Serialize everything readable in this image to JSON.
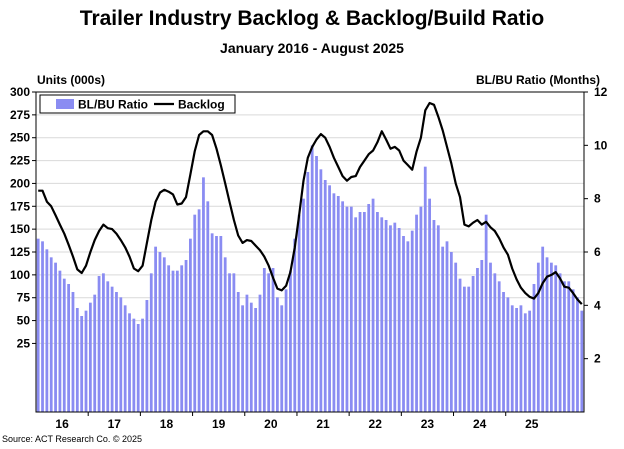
{
  "chart_data": {
    "type": "bar+line",
    "title": "Trailer Industry Backlog & Backlog/Build Ratio",
    "subtitle": "January 2016 - August 2025",
    "ylabel_left": "Units (000s)",
    "ylabel_right": "BL/BU Ratio (Months)",
    "source": "Source: ACT Research Co. © 2025",
    "left_axis": {
      "ticks": [
        25,
        50,
        75,
        100,
        125,
        150,
        175,
        200,
        225,
        250,
        275,
        300
      ],
      "range": [
        -50,
        300
      ]
    },
    "right_axis": {
      "ticks": [
        2,
        4,
        6,
        8,
        10,
        12
      ],
      "range": [
        0,
        12
      ]
    },
    "x_labels": [
      "16",
      "17",
      "18",
      "19",
      "20",
      "21",
      "22",
      "23",
      "24",
      "25"
    ],
    "grid": true,
    "legend": {
      "position": "top-left",
      "entries": [
        "BL/BU Ratio",
        "Backlog"
      ]
    },
    "colors": {
      "bar": "#8a8cf2",
      "line": "#000000"
    },
    "series": [
      {
        "name": "Backlog",
        "type": "line",
        "axis": "left",
        "values": [
          192,
          192,
          180,
          175,
          165,
          155,
          145,
          133,
          120,
          106,
          102,
          110,
          125,
          138,
          148,
          155,
          151,
          150,
          145,
          138,
          130,
          120,
          107,
          104,
          110,
          135,
          160,
          180,
          190,
          193,
          191,
          188,
          177,
          178,
          185,
          210,
          235,
          253,
          257,
          257,
          253,
          238,
          220,
          200,
          180,
          160,
          143,
          135,
          138,
          137,
          132,
          127,
          120,
          110,
          97,
          85,
          83,
          88,
          103,
          130,
          165,
          203,
          228,
          240,
          248,
          254,
          250,
          240,
          228,
          218,
          208,
          203,
          207,
          208,
          218,
          225,
          232,
          236,
          245,
          257,
          248,
          238,
          240,
          236,
          225,
          220,
          215,
          235,
          250,
          280,
          288,
          286,
          273,
          258,
          240,
          222,
          200,
          185,
          155,
          153,
          157,
          160,
          155,
          158,
          152,
          148,
          140,
          130,
          122,
          107,
          95,
          86,
          80,
          76,
          74,
          80,
          91,
          98,
          100,
          103,
          96,
          87,
          86,
          80,
          73,
          68
        ]
      },
      {
        "name": "BL/BU Ratio",
        "type": "bar",
        "axis": "right",
        "values": [
          6.5,
          6.4,
          6.1,
          5.8,
          5.6,
          5.3,
          5.0,
          4.8,
          4.5,
          3.9,
          3.6,
          3.8,
          4.1,
          4.4,
          5.1,
          5.2,
          4.9,
          4.7,
          4.5,
          4.3,
          4.0,
          3.7,
          3.5,
          3.3,
          3.5,
          4.2,
          5.2,
          6.2,
          6.0,
          5.8,
          5.5,
          5.3,
          5.3,
          5.5,
          5.7,
          6.5,
          7.4,
          7.6,
          8.8,
          7.9,
          6.7,
          6.6,
          6.6,
          5.8,
          5.2,
          5.2,
          4.5,
          4.0,
          4.4,
          4.1,
          3.9,
          4.4,
          5.4,
          5.2,
          5.4,
          4.3,
          4.0,
          4.6,
          5.3,
          6.5,
          7.4,
          8.0,
          9.0,
          10.0,
          9.6,
          9.1,
          8.7,
          8.5,
          8.2,
          8.1,
          7.9,
          7.7,
          7.7,
          7.3,
          7.5,
          7.5,
          7.8,
          8.0,
          7.5,
          7.3,
          7.2,
          7.0,
          7.1,
          6.9,
          6.6,
          6.4,
          6.8,
          7.4,
          7.7,
          9.2,
          8.0,
          7.2,
          7.0,
          6.2,
          6.4,
          6.0,
          5.6,
          5.0,
          4.7,
          4.7,
          5.1,
          5.4,
          5.7,
          7.4,
          5.6,
          5.2,
          4.9,
          4.5,
          4.3,
          4.0,
          3.9,
          4.0,
          3.7,
          3.8,
          4.8,
          5.6,
          6.2,
          5.8,
          5.6,
          5.5,
          5.2,
          4.9,
          4.9,
          4.6,
          4.3,
          3.8
        ]
      }
    ]
  }
}
